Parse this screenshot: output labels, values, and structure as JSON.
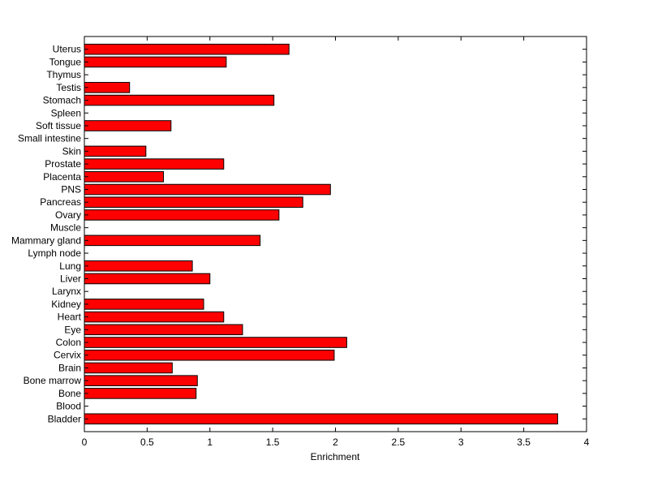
{
  "chart_data": {
    "type": "bar",
    "orientation": "horizontal",
    "title": "",
    "xlabel": "Enrichment",
    "ylabel": "",
    "xlim": [
      0,
      4
    ],
    "xticks": [
      0,
      0.5,
      1,
      1.5,
      2,
      2.5,
      3,
      3.5,
      4
    ],
    "xtick_labels": [
      "0",
      "0.5",
      "1",
      "1.5",
      "2",
      "2.5",
      "3",
      "3.5",
      "4"
    ],
    "grid": false,
    "legend": "none",
    "bar_color": "#ff0000",
    "categories": [
      "Bladder",
      "Blood",
      "Bone",
      "Bone marrow",
      "Brain",
      "Cervix",
      "Colon",
      "Eye",
      "Heart",
      "Kidney",
      "Larynx",
      "Liver",
      "Lung",
      "Lymph node",
      "Mammary gland",
      "Muscle",
      "Ovary",
      "Pancreas",
      "PNS",
      "Placenta",
      "Prostate",
      "Skin",
      "Small intestine",
      "Soft tissue",
      "Spleen",
      "Stomach",
      "Testis",
      "Thymus",
      "Tongue",
      "Uterus"
    ],
    "values": [
      3.77,
      0,
      0.89,
      0.9,
      0.7,
      1.99,
      2.09,
      1.26,
      1.11,
      0.95,
      0,
      1.0,
      0.86,
      0,
      1.4,
      0,
      1.55,
      1.74,
      1.96,
      0.63,
      1.11,
      0.49,
      0,
      0.69,
      0,
      1.51,
      0.36,
      0,
      1.13,
      1.63
    ]
  }
}
